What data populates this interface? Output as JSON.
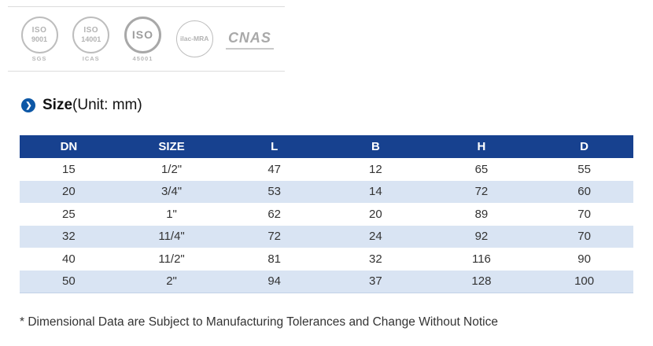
{
  "certifications": {
    "logos": [
      {
        "line1": "ISO",
        "line2": "9001",
        "sub": "SGS"
      },
      {
        "line1": "ISO",
        "line2": "14001",
        "sub": "ICAS"
      },
      {
        "line1": "ISO",
        "line2": "",
        "sub": "45001"
      },
      {
        "line1": "ilac-MRA",
        "line2": "",
        "sub": ""
      },
      {
        "line1": "CNAS",
        "line2": "",
        "sub": ""
      }
    ]
  },
  "section": {
    "chevron": "❯",
    "title_bold": "Size",
    "title_normal": "(Unit: mm)"
  },
  "table": {
    "headers": [
      "DN",
      "SIZE",
      "L",
      "B",
      "H",
      "D"
    ],
    "rows": [
      [
        "15",
        "1/2\"",
        "47",
        "12",
        "65",
        "55"
      ],
      [
        "20",
        "3/4\"",
        "53",
        "14",
        "72",
        "60"
      ],
      [
        "25",
        "1\"",
        "62",
        "20",
        "89",
        "70"
      ],
      [
        "32",
        "11/4\"",
        "72",
        "24",
        "92",
        "70"
      ],
      [
        "40",
        "11/2\"",
        "81",
        "32",
        "116",
        "90"
      ],
      [
        "50",
        "2\"",
        "94",
        "37",
        "128",
        "100"
      ]
    ]
  },
  "footnote": "* Dimensional Data are Subject to Manufacturing Tolerances and Change Without Notice",
  "colors": {
    "header_bg": "#17418f",
    "row_alt_bg": "#d9e4f3",
    "accent": "#0d57a6"
  }
}
